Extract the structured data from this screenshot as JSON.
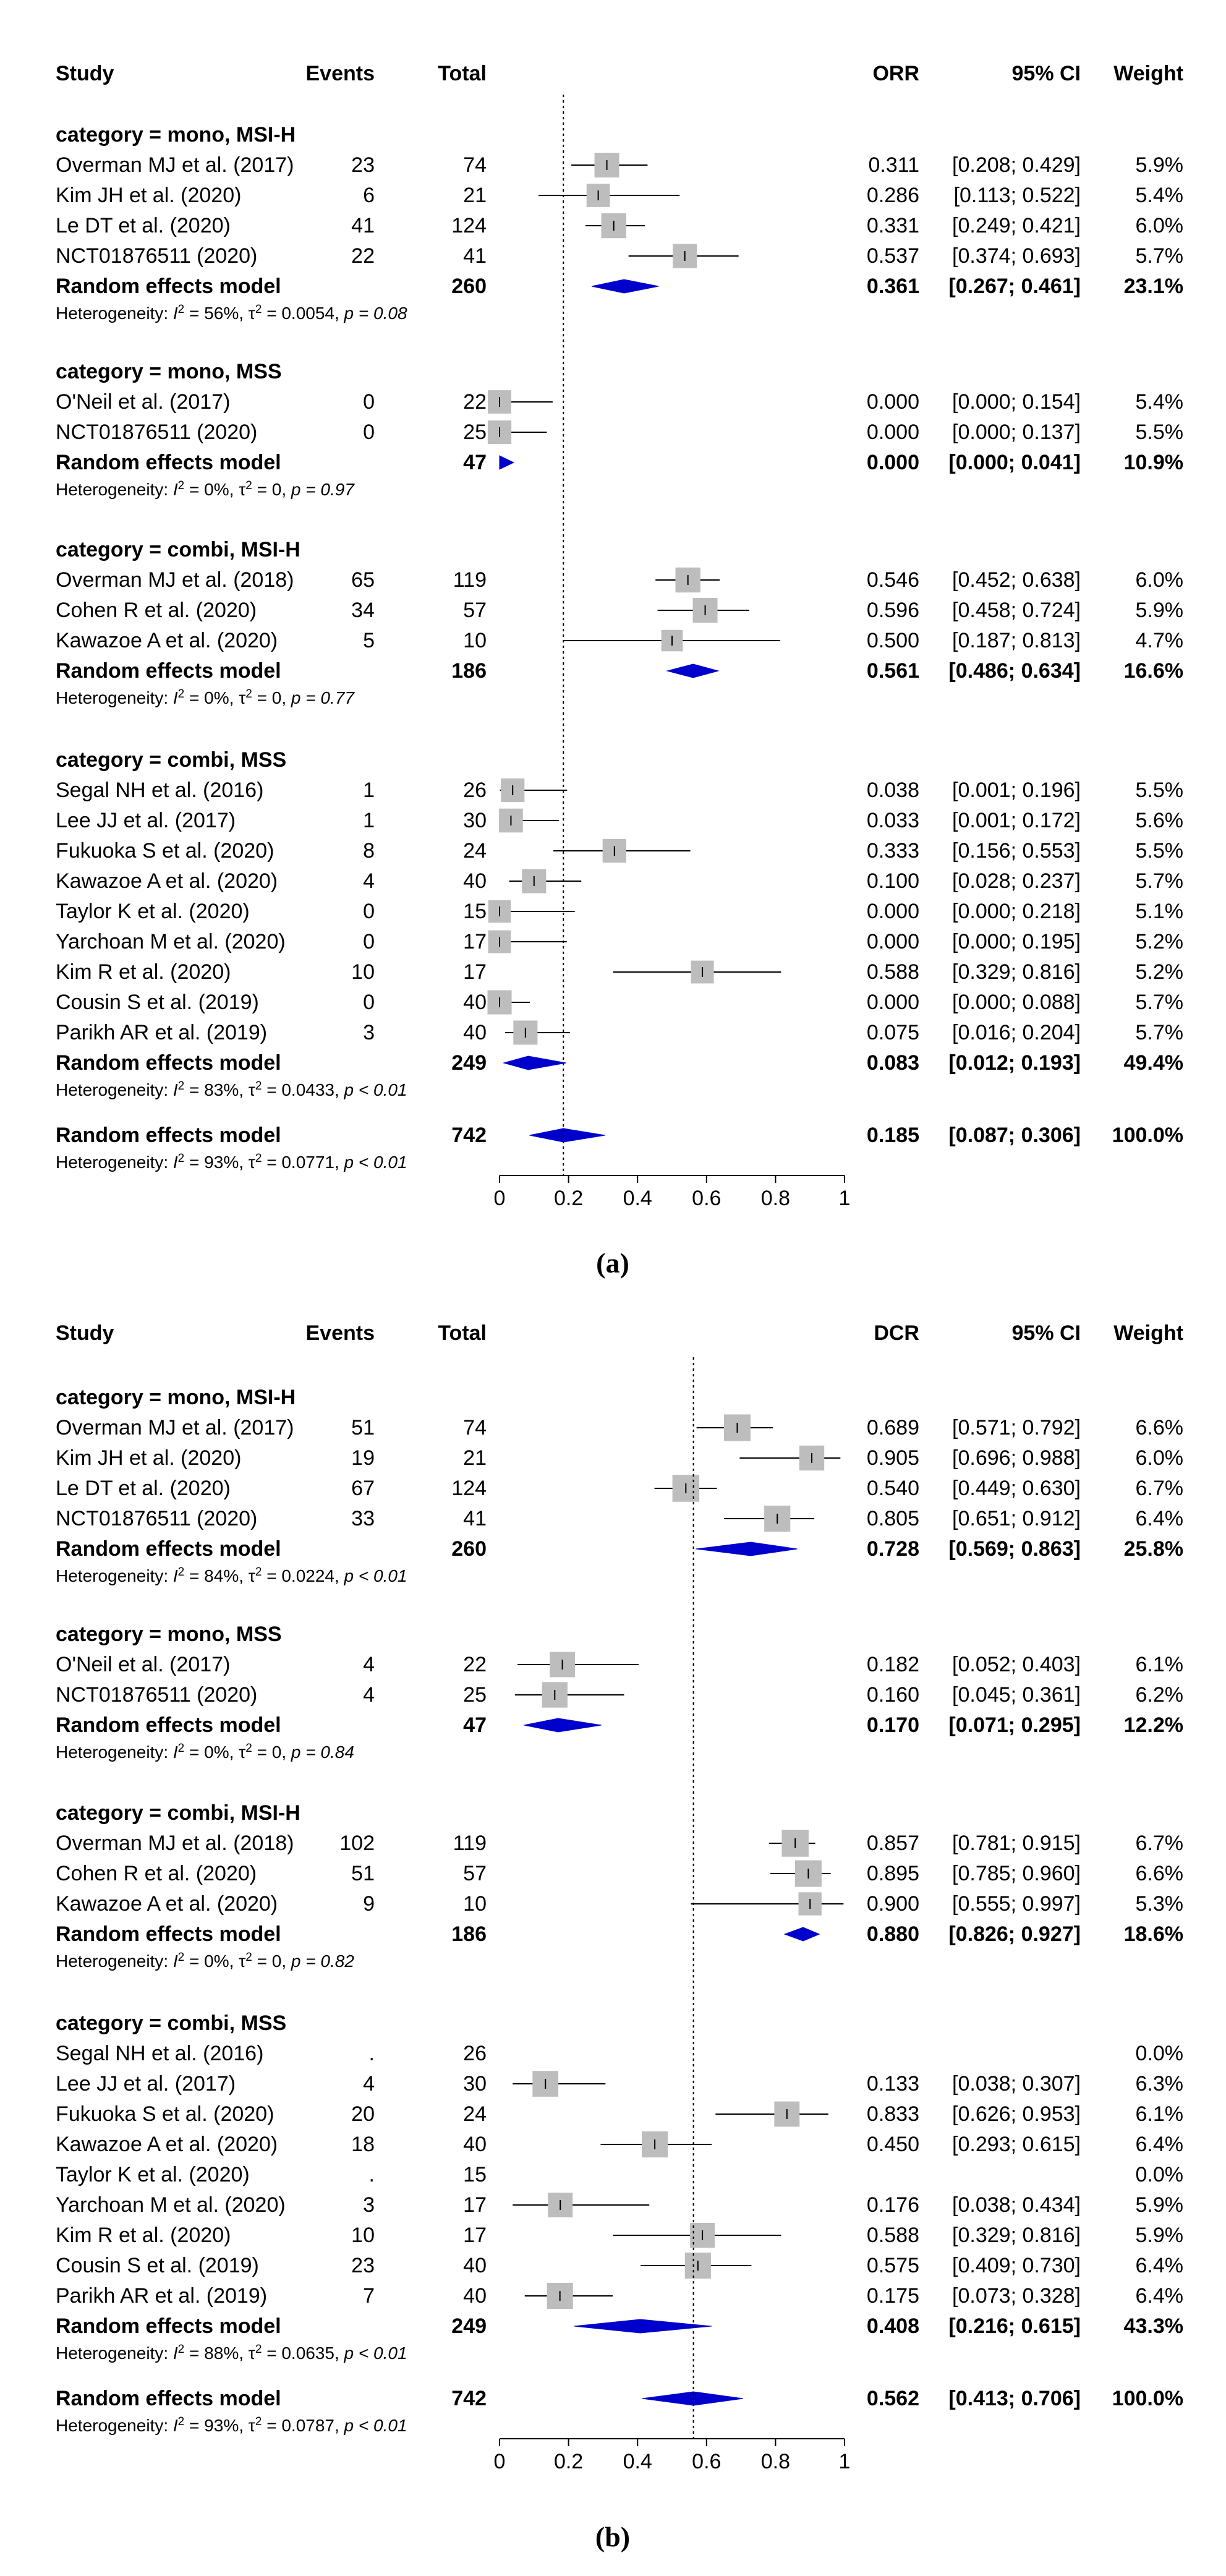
{
  "figure": {
    "panels": [
      "a",
      "b"
    ],
    "panel_labels": [
      "(a)",
      "(b)"
    ]
  },
  "chart_data": [
    {
      "type": "forest",
      "panel": "(a)",
      "headers": {
        "study": "Study",
        "events": "Events",
        "total": "Total",
        "metric": "ORR",
        "ci": "95% CI",
        "weight": "Weight"
      },
      "axis": {
        "xlim": [
          0,
          1
        ],
        "ticks": [
          "0",
          "0.2",
          "0.4",
          "0.6",
          "0.8",
          "1"
        ],
        "reference": 0.185
      },
      "groups": [
        {
          "title": "category = mono, MSI-H",
          "studies": [
            {
              "label": "Overman MJ et al. (2017)",
              "events": "23",
              "total": "74",
              "est": 0.311,
              "lo": 0.208,
              "hi": 0.429,
              "value": "0.311",
              "ci": "[0.208; 0.429]",
              "weight": "5.9%",
              "w": 5.9
            },
            {
              "label": "Kim JH et al. (2020)",
              "events": "6",
              "total": "21",
              "est": 0.286,
              "lo": 0.113,
              "hi": 0.522,
              "value": "0.286",
              "ci": "[0.113; 0.522]",
              "weight": "5.4%",
              "w": 5.4
            },
            {
              "label": "Le DT et al. (2020)",
              "events": "41",
              "total": "124",
              "est": 0.331,
              "lo": 0.249,
              "hi": 0.421,
              "value": "0.331",
              "ci": "[0.249; 0.421]",
              "weight": "6.0%",
              "w": 6.0
            },
            {
              "label": "NCT01876511 (2020)",
              "events": "22",
              "total": "41",
              "est": 0.537,
              "lo": 0.374,
              "hi": 0.693,
              "value": "0.537",
              "ci": "[0.374; 0.693]",
              "weight": "5.7%",
              "w": 5.7
            }
          ],
          "summary": {
            "label": "Random effects model",
            "total": "260",
            "est": 0.361,
            "lo": 0.267,
            "hi": 0.461,
            "value": "0.361",
            "ci": "[0.267; 0.461]",
            "weight": "23.1%"
          },
          "het": {
            "i2": "56%",
            "tau2": "0.0054",
            "p": "p = 0.08"
          }
        },
        {
          "title": "category = mono, MSS",
          "studies": [
            {
              "label": "O'Neil et al. (2017)",
              "events": "0",
              "total": "22",
              "est": 0.0,
              "lo": 0.0,
              "hi": 0.154,
              "value": "0.000",
              "ci": "[0.000; 0.154]",
              "weight": "5.4%",
              "w": 5.4
            },
            {
              "label": "NCT01876511 (2020)",
              "events": "0",
              "total": "25",
              "est": 0.0,
              "lo": 0.0,
              "hi": 0.137,
              "value": "0.000",
              "ci": "[0.000; 0.137]",
              "weight": "5.5%",
              "w": 5.5
            }
          ],
          "summary": {
            "label": "Random effects model",
            "total": "47",
            "est": 0.0,
            "lo": 0.0,
            "hi": 0.041,
            "value": "0.000",
            "ci": "[0.000; 0.041]",
            "weight": "10.9%"
          },
          "het": {
            "i2": "0%",
            "tau2": "0",
            "p": "p = 0.97"
          }
        },
        {
          "title": "category = combi, MSI-H",
          "studies": [
            {
              "label": "Overman MJ et al. (2018)",
              "events": "65",
              "total": "119",
              "est": 0.546,
              "lo": 0.452,
              "hi": 0.638,
              "value": "0.546",
              "ci": "[0.452; 0.638]",
              "weight": "6.0%",
              "w": 6.0
            },
            {
              "label": "Cohen R et al. (2020)",
              "events": "34",
              "total": "57",
              "est": 0.596,
              "lo": 0.458,
              "hi": 0.724,
              "value": "0.596",
              "ci": "[0.458; 0.724]",
              "weight": "5.9%",
              "w": 5.9
            },
            {
              "label": "Kawazoe A et al. (2020)",
              "events": "5",
              "total": "10",
              "est": 0.5,
              "lo": 0.187,
              "hi": 0.813,
              "value": "0.500",
              "ci": "[0.187; 0.813]",
              "weight": "4.7%",
              "w": 4.7
            }
          ],
          "summary": {
            "label": "Random effects model",
            "total": "186",
            "est": 0.561,
            "lo": 0.486,
            "hi": 0.634,
            "value": "0.561",
            "ci": "[0.486; 0.634]",
            "weight": "16.6%"
          },
          "het": {
            "i2": "0%",
            "tau2": "0",
            "p": "p = 0.77"
          }
        },
        {
          "title": "category = combi, MSS",
          "studies": [
            {
              "label": "Segal NH et al. (2016)",
              "events": "1",
              "total": "26",
              "est": 0.038,
              "lo": 0.001,
              "hi": 0.196,
              "value": "0.038",
              "ci": "[0.001; 0.196]",
              "weight": "5.5%",
              "w": 5.5
            },
            {
              "label": "Lee JJ et al. (2017)",
              "events": "1",
              "total": "30",
              "est": 0.033,
              "lo": 0.001,
              "hi": 0.172,
              "value": "0.033",
              "ci": "[0.001; 0.172]",
              "weight": "5.6%",
              "w": 5.6
            },
            {
              "label": "Fukuoka S et al. (2020)",
              "events": "8",
              "total": "24",
              "est": 0.333,
              "lo": 0.156,
              "hi": 0.553,
              "value": "0.333",
              "ci": "[0.156; 0.553]",
              "weight": "5.5%",
              "w": 5.5
            },
            {
              "label": "Kawazoe A et al. (2020)",
              "events": "4",
              "total": "40",
              "est": 0.1,
              "lo": 0.028,
              "hi": 0.237,
              "value": "0.100",
              "ci": "[0.028; 0.237]",
              "weight": "5.7%",
              "w": 5.7
            },
            {
              "label": "Taylor K et al. (2020)",
              "events": "0",
              "total": "15",
              "est": 0.0,
              "lo": 0.0,
              "hi": 0.218,
              "value": "0.000",
              "ci": "[0.000; 0.218]",
              "weight": "5.1%",
              "w": 5.1
            },
            {
              "label": "Yarchoan M et al. (2020)",
              "events": "0",
              "total": "17",
              "est": 0.0,
              "lo": 0.0,
              "hi": 0.195,
              "value": "0.000",
              "ci": "[0.000; 0.195]",
              "weight": "5.2%",
              "w": 5.2
            },
            {
              "label": "Kim R et al. (2020)",
              "events": "10",
              "total": "17",
              "est": 0.588,
              "lo": 0.329,
              "hi": 0.816,
              "value": "0.588",
              "ci": "[0.329; 0.816]",
              "weight": "5.2%",
              "w": 5.2
            },
            {
              "label": "Cousin S et al. (2019)",
              "events": "0",
              "total": "40",
              "est": 0.0,
              "lo": 0.0,
              "hi": 0.088,
              "value": "0.000",
              "ci": "[0.000; 0.088]",
              "weight": "5.7%",
              "w": 5.7
            },
            {
              "label": "Parikh AR et al. (2019)",
              "events": "3",
              "total": "40",
              "est": 0.075,
              "lo": 0.016,
              "hi": 0.204,
              "value": "0.075",
              "ci": "[0.016; 0.204]",
              "weight": "5.7%",
              "w": 5.7
            }
          ],
          "summary": {
            "label": "Random effects model",
            "total": "249",
            "est": 0.083,
            "lo": 0.012,
            "hi": 0.193,
            "value": "0.083",
            "ci": "[0.012; 0.193]",
            "weight": "49.4%"
          },
          "het": {
            "i2": "83%",
            "tau2": "0.0433",
            "p": "p < 0.01"
          }
        }
      ],
      "overall": {
        "label": "Random effects model",
        "total": "742",
        "est": 0.185,
        "lo": 0.087,
        "hi": 0.306,
        "value": "0.185",
        "ci": "[0.087; 0.306]",
        "weight": "100.0%",
        "het": {
          "i2": "93%",
          "tau2": "0.0771",
          "p": "p < 0.01"
        }
      }
    },
    {
      "type": "forest",
      "panel": "(b)",
      "headers": {
        "study": "Study",
        "events": "Events",
        "total": "Total",
        "metric": "DCR",
        "ci": "95% CI",
        "weight": "Weight"
      },
      "axis": {
        "xlim": [
          0,
          1
        ],
        "ticks": [
          "0",
          "0.2",
          "0.4",
          "0.6",
          "0.8",
          "1"
        ],
        "reference": 0.562
      },
      "groups": [
        {
          "title": "category = mono, MSI-H",
          "studies": [
            {
              "label": "Overman MJ et al. (2017)",
              "events": "51",
              "total": "74",
              "est": 0.689,
              "lo": 0.571,
              "hi": 0.792,
              "value": "0.689",
              "ci": "[0.571; 0.792]",
              "weight": "6.6%",
              "w": 6.6
            },
            {
              "label": "Kim JH et al. (2020)",
              "events": "19",
              "total": "21",
              "est": 0.905,
              "lo": 0.696,
              "hi": 0.988,
              "value": "0.905",
              "ci": "[0.696; 0.988]",
              "weight": "6.0%",
              "w": 6.0
            },
            {
              "label": "Le DT et al. (2020)",
              "events": "67",
              "total": "124",
              "est": 0.54,
              "lo": 0.449,
              "hi": 0.63,
              "value": "0.540",
              "ci": "[0.449; 0.630]",
              "weight": "6.7%",
              "w": 6.7
            },
            {
              "label": "NCT01876511 (2020)",
              "events": "33",
              "total": "41",
              "est": 0.805,
              "lo": 0.651,
              "hi": 0.912,
              "value": "0.805",
              "ci": "[0.651; 0.912]",
              "weight": "6.4%",
              "w": 6.4
            }
          ],
          "summary": {
            "label": "Random effects model",
            "total": "260",
            "est": 0.728,
            "lo": 0.569,
            "hi": 0.863,
            "value": "0.728",
            "ci": "[0.569; 0.863]",
            "weight": "25.8%"
          },
          "het": {
            "i2": "84%",
            "tau2": "0.0224",
            "p": "p < 0.01"
          }
        },
        {
          "title": "category = mono, MSS",
          "studies": [
            {
              "label": "O'Neil et al. (2017)",
              "events": "4",
              "total": "22",
              "est": 0.182,
              "lo": 0.052,
              "hi": 0.403,
              "value": "0.182",
              "ci": "[0.052; 0.403]",
              "weight": "6.1%",
              "w": 6.1
            },
            {
              "label": "NCT01876511 (2020)",
              "events": "4",
              "total": "25",
              "est": 0.16,
              "lo": 0.045,
              "hi": 0.361,
              "value": "0.160",
              "ci": "[0.045; 0.361]",
              "weight": "6.2%",
              "w": 6.2
            }
          ],
          "summary": {
            "label": "Random effects model",
            "total": "47",
            "est": 0.17,
            "lo": 0.071,
            "hi": 0.295,
            "value": "0.170",
            "ci": "[0.071; 0.295]",
            "weight": "12.2%"
          },
          "het": {
            "i2": "0%",
            "tau2": "0",
            "p": "p = 0.84"
          }
        },
        {
          "title": "category = combi, MSI-H",
          "studies": [
            {
              "label": "Overman MJ et al. (2018)",
              "events": "102",
              "total": "119",
              "est": 0.857,
              "lo": 0.781,
              "hi": 0.915,
              "value": "0.857",
              "ci": "[0.781; 0.915]",
              "weight": "6.7%",
              "w": 6.7
            },
            {
              "label": "Cohen R et al. (2020)",
              "events": "51",
              "total": "57",
              "est": 0.895,
              "lo": 0.785,
              "hi": 0.96,
              "value": "0.895",
              "ci": "[0.785; 0.960]",
              "weight": "6.6%",
              "w": 6.6
            },
            {
              "label": "Kawazoe A et al. (2020)",
              "events": "9",
              "total": "10",
              "est": 0.9,
              "lo": 0.555,
              "hi": 0.997,
              "value": "0.900",
              "ci": "[0.555; 0.997]",
              "weight": "5.3%",
              "w": 5.3
            }
          ],
          "summary": {
            "label": "Random effects model",
            "total": "186",
            "est": 0.88,
            "lo": 0.826,
            "hi": 0.927,
            "value": "0.880",
            "ci": "[0.826; 0.927]",
            "weight": "18.6%"
          },
          "het": {
            "i2": "0%",
            "tau2": "0",
            "p": "p = 0.82"
          }
        },
        {
          "title": "category = combi, MSS",
          "studies": [
            {
              "label": "Segal NH et al. (2016)",
              "events": ".",
              "total": "26",
              "est": null,
              "lo": null,
              "hi": null,
              "value": "",
              "ci": "",
              "weight": "0.0%",
              "w": 0
            },
            {
              "label": "Lee JJ et al. (2017)",
              "events": "4",
              "total": "30",
              "est": 0.133,
              "lo": 0.038,
              "hi": 0.307,
              "value": "0.133",
              "ci": "[0.038; 0.307]",
              "weight": "6.3%",
              "w": 6.3
            },
            {
              "label": "Fukuoka S et al. (2020)",
              "events": "20",
              "total": "24",
              "est": 0.833,
              "lo": 0.626,
              "hi": 0.953,
              "value": "0.833",
              "ci": "[0.626; 0.953]",
              "weight": "6.1%",
              "w": 6.1
            },
            {
              "label": "Kawazoe A et al. (2020)",
              "events": "18",
              "total": "40",
              "est": 0.45,
              "lo": 0.293,
              "hi": 0.615,
              "value": "0.450",
              "ci": "[0.293; 0.615]",
              "weight": "6.4%",
              "w": 6.4
            },
            {
              "label": "Taylor K et al. (2020)",
              "events": ".",
              "total": "15",
              "est": null,
              "lo": null,
              "hi": null,
              "value": "",
              "ci": "",
              "weight": "0.0%",
              "w": 0
            },
            {
              "label": "Yarchoan M et al. (2020)",
              "events": "3",
              "total": "17",
              "est": 0.176,
              "lo": 0.038,
              "hi": 0.434,
              "value": "0.176",
              "ci": "[0.038; 0.434]",
              "weight": "5.9%",
              "w": 5.9
            },
            {
              "label": "Kim R et al. (2020)",
              "events": "10",
              "total": "17",
              "est": 0.588,
              "lo": 0.329,
              "hi": 0.816,
              "value": "0.588",
              "ci": "[0.329; 0.816]",
              "weight": "5.9%",
              "w": 5.9
            },
            {
              "label": "Cousin S et al. (2019)",
              "events": "23",
              "total": "40",
              "est": 0.575,
              "lo": 0.409,
              "hi": 0.73,
              "value": "0.575",
              "ci": "[0.409; 0.730]",
              "weight": "6.4%",
              "w": 6.4
            },
            {
              "label": "Parikh AR et al. (2019)",
              "events": "7",
              "total": "40",
              "est": 0.175,
              "lo": 0.073,
              "hi": 0.328,
              "value": "0.175",
              "ci": "[0.073; 0.328]",
              "weight": "6.4%",
              "w": 6.4
            }
          ],
          "summary": {
            "label": "Random effects model",
            "total": "249",
            "est": 0.408,
            "lo": 0.216,
            "hi": 0.615,
            "value": "0.408",
            "ci": "[0.216; 0.615]",
            "weight": "43.3%"
          },
          "het": {
            "i2": "88%",
            "tau2": "0.0635",
            "p": "p < 0.01"
          }
        }
      ],
      "overall": {
        "label": "Random effects model",
        "total": "742",
        "est": 0.562,
        "lo": 0.413,
        "hi": 0.706,
        "value": "0.562",
        "ci": "[0.413; 0.706]",
        "weight": "100.0%",
        "het": {
          "i2": "93%",
          "tau2": "0.0787",
          "p": "p < 0.01"
        }
      }
    }
  ]
}
